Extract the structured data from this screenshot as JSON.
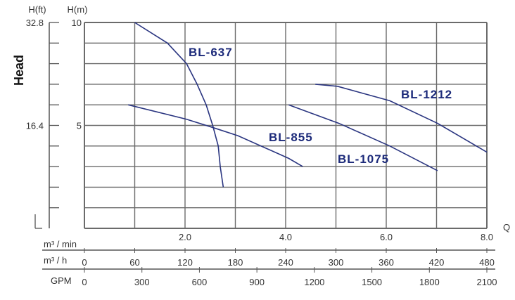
{
  "chart_data": {
    "type": "line",
    "ylabel": "Head",
    "y_units": [
      "H(ft)",
      "H(m)"
    ],
    "x_axis_label": "Q",
    "ylim": [
      0,
      10
    ],
    "xlim": [
      0,
      8
    ],
    "grid": true,
    "y_ticks_m": [
      {
        "v": 10,
        "label": "10"
      },
      {
        "v": 5,
        "label": "5"
      }
    ],
    "y_ticks_ft": [
      {
        "v": 10,
        "label": "32.8"
      },
      {
        "v": 5,
        "label": "16.4"
      }
    ],
    "x_scales": [
      {
        "unit": "m³ / min",
        "ticks": [
          {
            "v": 2,
            "label": "2.0"
          },
          {
            "v": 4,
            "label": "4.0"
          },
          {
            "v": 6,
            "label": "6.0"
          },
          {
            "v": 8,
            "label": "8.0"
          }
        ]
      },
      {
        "unit": "m³ / h",
        "ticks": [
          "0",
          "60",
          "120",
          "180",
          "240",
          "300",
          "360",
          "420",
          "480"
        ],
        "max": 480
      },
      {
        "unit": "GPM",
        "ticks": [
          "0",
          "300",
          "600",
          "900",
          "1200",
          "1500",
          "1800",
          "2100"
        ],
        "max": 2100
      }
    ],
    "series": [
      {
        "name": "BL-637",
        "x": [
          1.0,
          1.65,
          2.03,
          2.24,
          2.42,
          2.55,
          2.66,
          2.7,
          2.76
        ],
        "y": [
          10,
          9,
          8,
          7,
          6,
          5,
          4,
          3,
          2
        ]
      },
      {
        "name": "BL-855",
        "x": [
          0.87,
          2.03,
          2.55,
          3.05,
          4.06,
          4.34
        ],
        "y": [
          6,
          5.3,
          4.9,
          4.5,
          3.4,
          3
        ]
      },
      {
        "name": "BL-1075",
        "x": [
          4.06,
          5.06,
          6.07,
          7.02
        ],
        "y": [
          6,
          5.1,
          4,
          2.8
        ]
      },
      {
        "name": "BL-1212",
        "x": [
          4.59,
          5.03,
          6.07,
          7.02,
          8.0
        ],
        "y": [
          7,
          6.9,
          6.2,
          5.1,
          3.7
        ]
      }
    ],
    "line_color": "#2a3580",
    "label_color": "#1c2a7a"
  }
}
